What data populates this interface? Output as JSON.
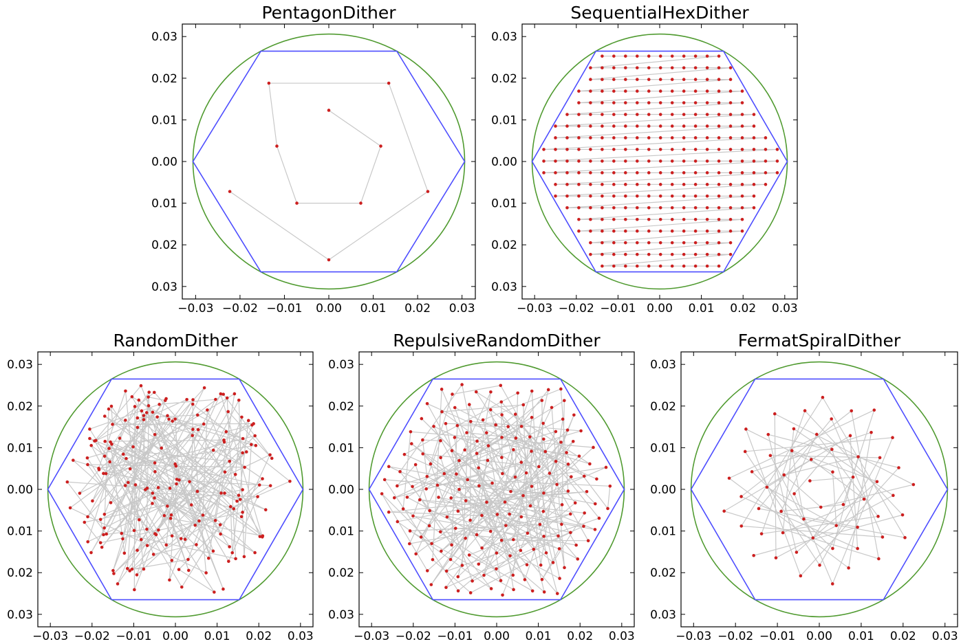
{
  "chart_data": [
    {
      "type": "scatter",
      "title": "PentagonDither",
      "xlabel": "",
      "ylabel": "",
      "xlim": [
        -0.033,
        0.033
      ],
      "ylim": [
        -0.033,
        0.033
      ],
      "x_ticks": [
        "−0.03",
        "−0.02",
        "−0.01",
        "0.00",
        "0.01",
        "0.02",
        "0.03"
      ],
      "y_ticks": [
        "0.03",
        "0.02",
        "0.01",
        "0.00",
        "0.01",
        "0.02",
        "0.03"
      ],
      "grid": false,
      "colors": {
        "circle": "#4f9a2f",
        "hexagon": "#4d4dff",
        "points": "#cc1f1f",
        "path": "#c8c8c8"
      },
      "circle_radius": 0.0306,
      "hexagon_circumradius": 0.0306,
      "generator": "pentagon",
      "series": [
        {
          "x": [
            0.0,
            0.0117,
            0.0072,
            -0.0072,
            -0.0117,
            -0.0135,
            0.0135,
            0.0223,
            0.0,
            -0.0223
          ],
          "y": [
            0.0123,
            0.0037,
            -0.01,
            -0.01,
            0.0037,
            0.0188,
            0.0188,
            -0.0072,
            -0.0236,
            -0.0072
          ]
        }
      ]
    },
    {
      "type": "scatter",
      "title": "SequentialHexDither",
      "xlabel": "",
      "ylabel": "",
      "xlim": [
        -0.033,
        0.033
      ],
      "ylim": [
        -0.033,
        0.033
      ],
      "x_ticks": [
        "−0.03",
        "−0.02",
        "−0.01",
        "0.00",
        "0.01",
        "0.02",
        "0.03"
      ],
      "y_ticks": [
        "0.03",
        "0.02",
        "0.01",
        "0.00",
        "0.01",
        "0.02",
        "0.03"
      ],
      "grid": false,
      "colors": {
        "circle": "#4f9a2f",
        "hexagon": "#4d4dff",
        "points": "#cc1f1f",
        "path": "#c8c8c8"
      },
      "circle_radius": 0.0306,
      "hexagon_circumradius": 0.0306,
      "generator": "hexgrid",
      "grid_spacing": 0.0028,
      "series": []
    },
    {
      "type": "scatter",
      "title": "RandomDither",
      "xlabel": "",
      "ylabel": "",
      "xlim": [
        -0.033,
        0.033
      ],
      "ylim": [
        -0.033,
        0.033
      ],
      "x_ticks": [
        "−0.03",
        "−0.02",
        "−0.01",
        "0.00",
        "0.01",
        "0.02",
        "0.03"
      ],
      "y_ticks": [
        "0.03",
        "0.02",
        "0.01",
        "0.00",
        "0.01",
        "0.02",
        "0.03"
      ],
      "grid": false,
      "colors": {
        "circle": "#4f9a2f",
        "hexagon": "#4d4dff",
        "points": "#cc1f1f",
        "path": "#c8c8c8"
      },
      "circle_radius": 0.0306,
      "hexagon_circumradius": 0.0306,
      "generator": "random",
      "num_points": 200,
      "series": []
    },
    {
      "type": "scatter",
      "title": "RepulsiveRandomDither",
      "xlabel": "",
      "ylabel": "",
      "xlim": [
        -0.033,
        0.033
      ],
      "ylim": [
        -0.033,
        0.033
      ],
      "x_ticks": [
        "−0.03",
        "−0.02",
        "−0.01",
        "0.00",
        "0.01",
        "0.02",
        "0.03"
      ],
      "y_ticks": [
        "0.03",
        "0.02",
        "0.01",
        "0.00",
        "0.01",
        "0.02",
        "0.03"
      ],
      "grid": false,
      "colors": {
        "circle": "#4f9a2f",
        "hexagon": "#4d4dff",
        "points": "#cc1f1f",
        "path": "#c8c8c8"
      },
      "circle_radius": 0.0306,
      "hexagon_circumradius": 0.0306,
      "generator": "repulsive",
      "num_points": 200,
      "series": []
    },
    {
      "type": "scatter",
      "title": "FermatSpiralDither",
      "xlabel": "",
      "ylabel": "",
      "xlim": [
        -0.033,
        0.033
      ],
      "ylim": [
        -0.033,
        0.033
      ],
      "x_ticks": [
        "−0.03",
        "−0.02",
        "−0.01",
        "0.00",
        "0.01",
        "0.02",
        "0.03"
      ],
      "y_ticks": [
        "0.03",
        "0.02",
        "0.01",
        "0.00",
        "0.01",
        "0.02",
        "0.03"
      ],
      "grid": false,
      "colors": {
        "circle": "#4f9a2f",
        "hexagon": "#4d4dff",
        "points": "#cc1f1f",
        "path": "#c8c8c8"
      },
      "circle_radius": 0.0306,
      "hexagon_circumradius": 0.0306,
      "generator": "fermat",
      "num_points": 60,
      "series": []
    }
  ]
}
